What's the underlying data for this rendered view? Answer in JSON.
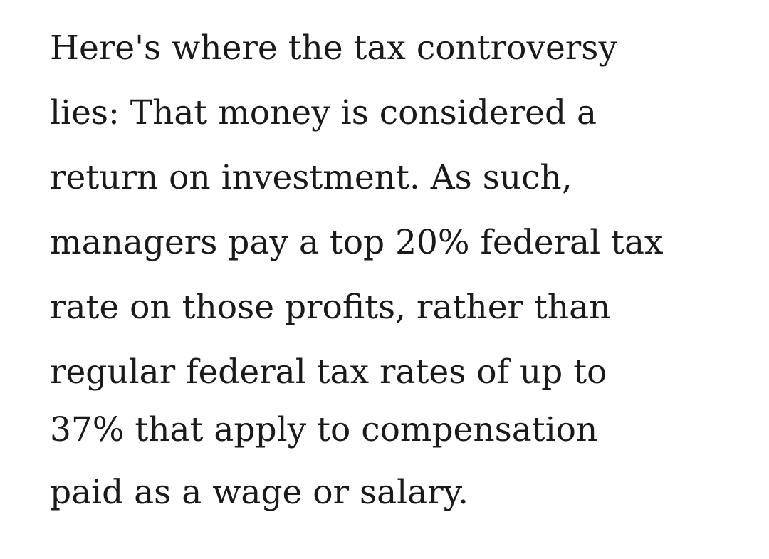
{
  "article": {
    "lines": [
      "Here's where the tax controversy",
      "lies: That money is considered a",
      "return on investment. As such,",
      "managers pay a top 20% federal tax",
      "rate on those profits, rather than",
      "regular federal tax rates of up to",
      "37% that apply to compensation",
      "paid as a wage or salary."
    ]
  }
}
